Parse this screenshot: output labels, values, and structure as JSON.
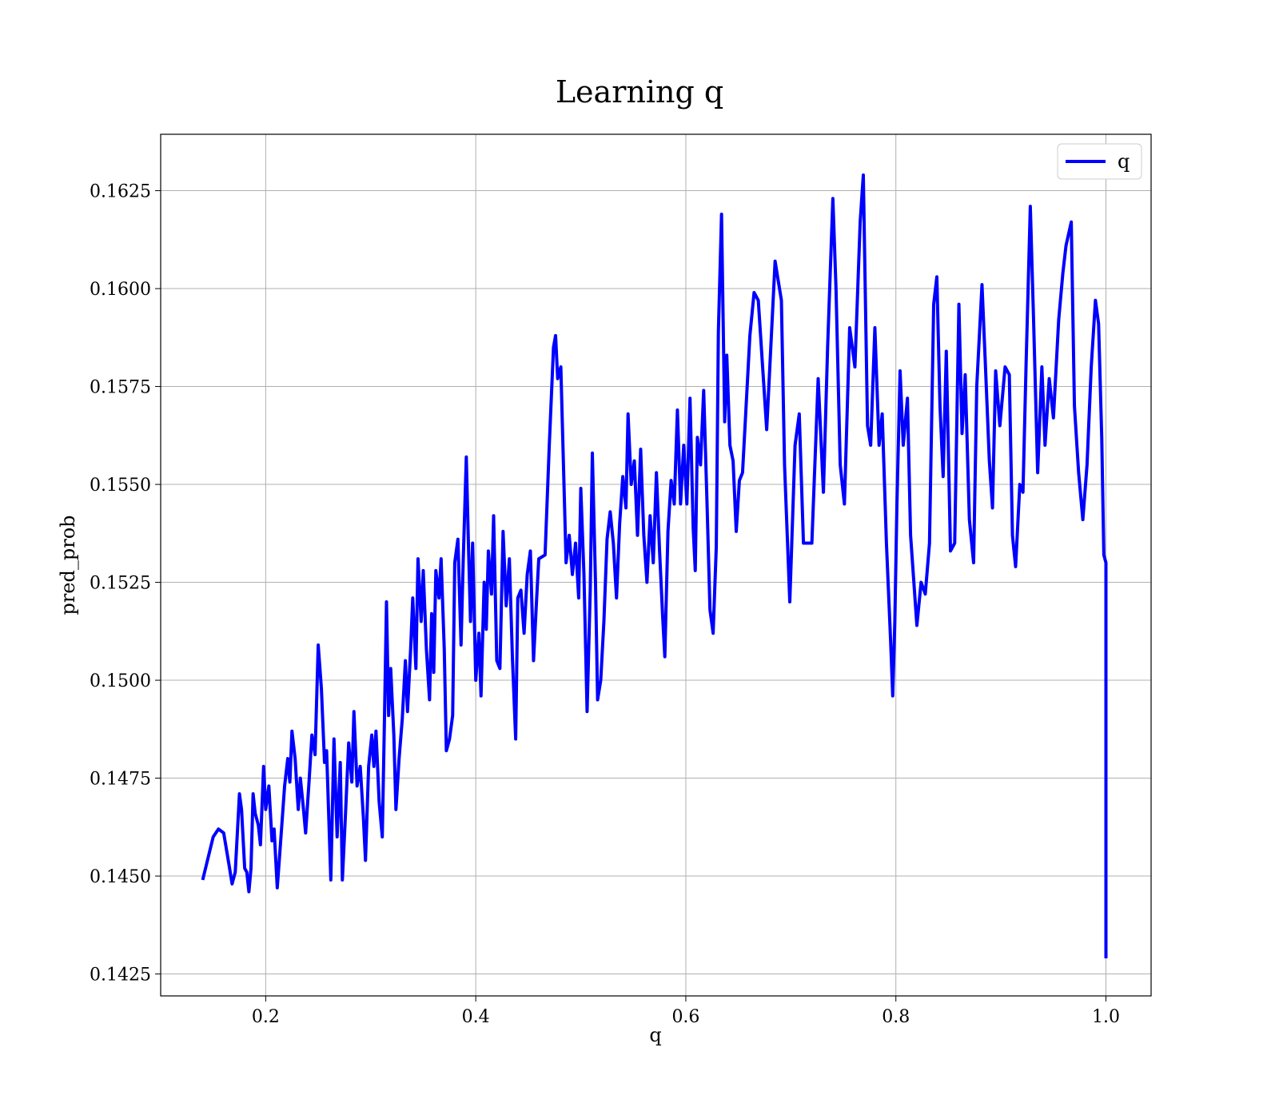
{
  "chart_data": {
    "type": "line",
    "title": "Learning q",
    "x_label": "q",
    "y_label": "pred_prob",
    "xlim": [
      0.1,
      1.043
    ],
    "ylim": [
      0.14194,
      0.16394
    ],
    "xticks": [
      0.2,
      0.4,
      0.6,
      0.8,
      {
        "value": 1.0,
        "label": "1.0"
      }
    ],
    "yticks": [
      0.1425,
      {
        "value": 0.145,
        "label": "0.1450"
      },
      0.1475,
      {
        "value": 0.15,
        "label": "0.1500"
      },
      0.1525,
      {
        "value": 0.155,
        "label": "0.1550"
      },
      0.1575,
      {
        "value": 0.16,
        "label": "0.1600"
      },
      0.1625
    ],
    "grid": true,
    "legend": "upper right",
    "x": [
      0.14,
      0.15,
      0.155,
      0.16,
      0.165,
      0.168,
      0.171,
      0.175,
      0.177,
      0.18,
      0.182,
      0.184,
      0.186,
      0.188,
      0.19,
      0.193,
      0.195,
      0.198,
      0.2,
      0.203,
      0.206,
      0.208,
      0.211,
      0.214,
      0.218,
      0.221,
      0.223,
      0.225,
      0.228,
      0.231,
      0.233,
      0.236,
      0.238,
      0.241,
      0.244,
      0.247,
      0.25,
      0.253,
      0.256,
      0.258,
      0.262,
      0.265,
      0.268,
      0.271,
      0.273,
      0.276,
      0.279,
      0.282,
      0.284,
      0.287,
      0.29,
      0.293,
      0.295,
      0.298,
      0.301,
      0.303,
      0.305,
      0.308,
      0.311,
      0.313,
      0.315,
      0.317,
      0.319,
      0.322,
      0.324,
      0.327,
      0.33,
      0.333,
      0.335,
      0.338,
      0.34,
      0.343,
      0.345,
      0.348,
      0.35,
      0.353,
      0.356,
      0.358,
      0.36,
      0.362,
      0.365,
      0.367,
      0.37,
      0.372,
      0.375,
      0.378,
      0.38,
      0.383,
      0.386,
      0.388,
      0.391,
      0.393,
      0.395,
      0.397,
      0.4,
      0.403,
      0.405,
      0.408,
      0.41,
      0.412,
      0.415,
      0.417,
      0.42,
      0.423,
      0.426,
      0.429,
      0.432,
      0.435,
      0.438,
      0.44,
      0.443,
      0.446,
      0.449,
      0.452,
      0.455,
      0.458,
      0.46,
      0.466,
      0.47,
      0.474,
      0.476,
      0.478,
      0.481,
      0.486,
      0.489,
      0.492,
      0.495,
      0.498,
      0.5,
      0.503,
      0.506,
      0.509,
      0.511,
      0.514,
      0.516,
      0.519,
      0.522,
      0.525,
      0.528,
      0.531,
      0.534,
      0.537,
      0.54,
      0.543,
      0.545,
      0.548,
      0.551,
      0.554,
      0.557,
      0.56,
      0.563,
      0.566,
      0.569,
      0.572,
      0.575,
      0.578,
      0.58,
      0.583,
      0.586,
      0.589,
      0.592,
      0.595,
      0.598,
      0.601,
      0.604,
      0.607,
      0.609,
      0.611,
      0.614,
      0.617,
      0.62,
      0.623,
      0.626,
      0.629,
      0.631,
      0.634,
      0.637,
      0.639,
      0.642,
      0.645,
      0.648,
      0.651,
      0.654,
      0.661,
      0.665,
      0.669,
      0.677,
      0.685,
      0.691,
      0.694,
      0.699,
      0.704,
      0.708,
      0.712,
      0.72,
      0.726,
      0.731,
      0.735,
      0.74,
      0.743,
      0.747,
      0.751,
      0.756,
      0.761,
      0.766,
      0.769,
      0.773,
      0.776,
      0.78,
      0.784,
      0.787,
      0.791,
      0.795,
      0.797,
      0.799,
      0.801,
      0.804,
      0.807,
      0.811,
      0.814,
      0.82,
      0.824,
      0.828,
      0.832,
      0.836,
      0.839,
      0.842,
      0.845,
      0.848,
      0.852,
      0.856,
      0.86,
      0.863,
      0.866,
      0.87,
      0.874,
      0.877,
      0.882,
      0.885,
      0.889,
      0.892,
      0.895,
      0.899,
      0.904,
      0.908,
      0.911,
      0.914,
      0.918,
      0.921,
      0.924,
      0.928,
      0.931,
      0.935,
      0.939,
      0.942,
      0.946,
      0.95,
      0.955,
      0.959,
      0.962,
      0.967,
      0.97,
      0.974,
      0.978,
      0.982,
      0.986,
      0.99,
      0.993,
      0.996,
      0.998,
      1.0,
      1.0
    ],
    "series": [
      {
        "name": "q",
        "color": "#0000ff",
        "values": [
          0.1449,
          0.146,
          0.1462,
          0.1461,
          0.1453,
          0.1448,
          0.1451,
          0.1471,
          0.1467,
          0.1452,
          0.1451,
          0.1446,
          0.1452,
          0.1471,
          0.1466,
          0.1463,
          0.1458,
          0.1478,
          0.1467,
          0.1473,
          0.1459,
          0.1462,
          0.1447,
          0.1458,
          0.1473,
          0.148,
          0.1474,
          0.1487,
          0.148,
          0.1467,
          0.1475,
          0.1467,
          0.1461,
          0.1473,
          0.1486,
          0.1481,
          0.1509,
          0.1498,
          0.1479,
          0.1482,
          0.1449,
          0.1485,
          0.146,
          0.1479,
          0.1449,
          0.1466,
          0.1484,
          0.1474,
          0.1492,
          0.1473,
          0.1478,
          0.1465,
          0.1454,
          0.1478,
          0.1486,
          0.1478,
          0.1487,
          0.1469,
          0.146,
          0.1489,
          0.152,
          0.1491,
          0.1503,
          0.1486,
          0.1467,
          0.148,
          0.149,
          0.1505,
          0.1492,
          0.1508,
          0.1521,
          0.1503,
          0.1531,
          0.1515,
          0.1528,
          0.1508,
          0.1495,
          0.1517,
          0.1502,
          0.1528,
          0.1521,
          0.1531,
          0.1508,
          0.1482,
          0.1485,
          0.1491,
          0.153,
          0.1536,
          0.1509,
          0.153,
          0.1557,
          0.1535,
          0.1515,
          0.1535,
          0.15,
          0.1512,
          0.1496,
          0.1525,
          0.1513,
          0.1533,
          0.1522,
          0.1542,
          0.1505,
          0.1503,
          0.1538,
          0.1519,
          0.1531,
          0.1505,
          0.1485,
          0.1521,
          0.1523,
          0.1512,
          0.1527,
          0.1533,
          0.1505,
          0.1521,
          0.1531,
          0.1532,
          0.156,
          0.1585,
          0.1588,
          0.1577,
          0.158,
          0.153,
          0.1537,
          0.1527,
          0.1535,
          0.1521,
          0.1549,
          0.1527,
          0.1492,
          0.1523,
          0.1558,
          0.1525,
          0.1495,
          0.15,
          0.1515,
          0.1536,
          0.1543,
          0.1535,
          0.1521,
          0.154,
          0.1552,
          0.1544,
          0.1568,
          0.155,
          0.1556,
          0.1537,
          0.1559,
          0.1537,
          0.1525,
          0.1542,
          0.153,
          0.1553,
          0.1533,
          0.1516,
          0.1506,
          0.1538,
          0.1551,
          0.1545,
          0.1569,
          0.1545,
          0.156,
          0.1545,
          0.1572,
          0.1539,
          0.1528,
          0.1562,
          0.1555,
          0.1574,
          0.1547,
          0.1518,
          0.1512,
          0.1534,
          0.1589,
          0.1619,
          0.1566,
          0.1583,
          0.156,
          0.1556,
          0.1538,
          0.1551,
          0.1553,
          0.1588,
          0.1599,
          0.1597,
          0.1564,
          0.1607,
          0.1597,
          0.1555,
          0.152,
          0.156,
          0.1568,
          0.1535,
          0.1535,
          0.1577,
          0.1548,
          0.1585,
          0.1623,
          0.16,
          0.1555,
          0.1545,
          0.159,
          0.158,
          0.1617,
          0.1629,
          0.1565,
          0.156,
          0.159,
          0.156,
          0.1568,
          0.1535,
          0.151,
          0.1496,
          0.1515,
          0.1545,
          0.1579,
          0.156,
          0.1572,
          0.1537,
          0.1514,
          0.1525,
          0.1522,
          0.1535,
          0.1596,
          0.1603,
          0.157,
          0.1552,
          0.1584,
          0.1533,
          0.1535,
          0.1596,
          0.1563,
          0.1578,
          0.1541,
          0.153,
          0.1575,
          0.1601,
          0.1582,
          0.1556,
          0.1544,
          0.1579,
          0.1565,
          0.158,
          0.1578,
          0.1537,
          0.1529,
          0.155,
          0.1548,
          0.1581,
          0.1621,
          0.1593,
          0.1553,
          0.158,
          0.156,
          0.1577,
          0.1567,
          0.1592,
          0.1604,
          0.1611,
          0.1617,
          0.157,
          0.1553,
          0.1541,
          0.1555,
          0.158,
          0.1597,
          0.1591,
          0.1562,
          0.1532,
          0.153,
          0.1429
        ]
      }
    ]
  }
}
